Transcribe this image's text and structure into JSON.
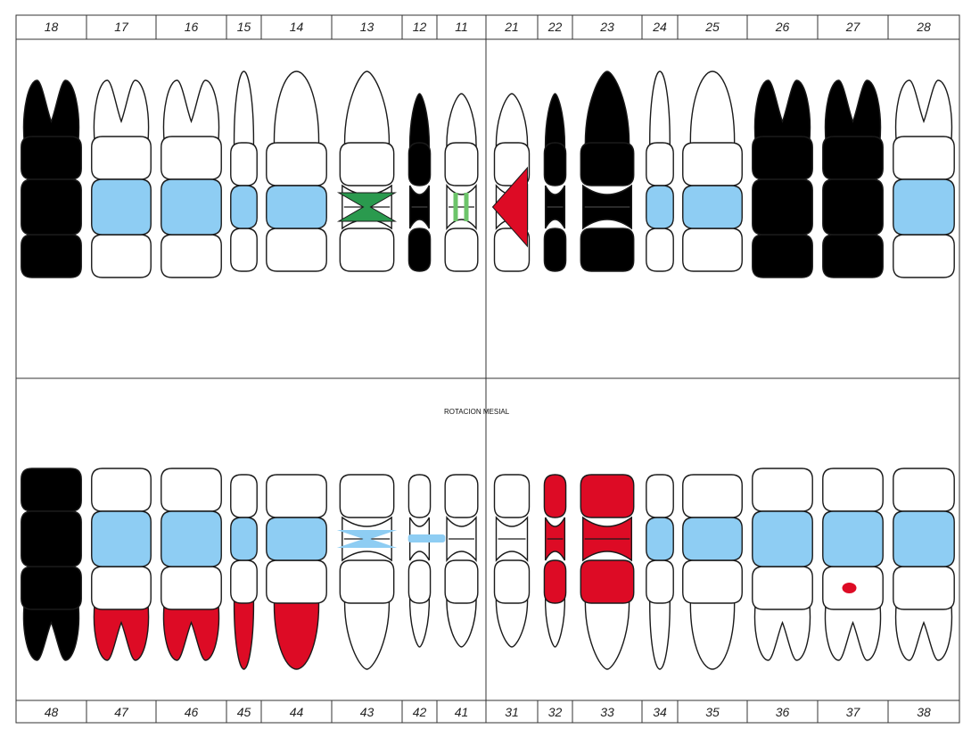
{
  "colors": {
    "extracted": "#000000",
    "restoration": "#8ecdf3",
    "caries": "#dd0b25",
    "sealant": "#2a9a4e",
    "sealant_light": "#6cc46a",
    "outline": "#1a1a1a",
    "fill": "#ffffff"
  },
  "annotation": "ROTACION MESIAL",
  "upper": [
    {
      "number": "18",
      "type": "molar",
      "status": "extracted",
      "mark": "none"
    },
    {
      "number": "17",
      "type": "molar",
      "status": "normal",
      "mark": "restoration"
    },
    {
      "number": "16",
      "type": "molar",
      "status": "normal",
      "mark": "restoration"
    },
    {
      "number": "15",
      "type": "premolar",
      "status": "normal",
      "mark": "restoration"
    },
    {
      "number": "14",
      "type": "premolar",
      "status": "normal",
      "mark": "restoration"
    },
    {
      "number": "13",
      "type": "canine",
      "status": "normal",
      "mark": "sealant-hourglass"
    },
    {
      "number": "12",
      "type": "incisor",
      "status": "extracted",
      "mark": "none"
    },
    {
      "number": "11",
      "type": "incisor",
      "status": "normal",
      "mark": "green-bars"
    },
    {
      "number": "21",
      "type": "incisor",
      "status": "normal",
      "mark": "red-wedge"
    },
    {
      "number": "22",
      "type": "incisor",
      "status": "extracted",
      "mark": "none"
    },
    {
      "number": "23",
      "type": "canine",
      "status": "extracted",
      "mark": "none"
    },
    {
      "number": "24",
      "type": "premolar",
      "status": "normal",
      "mark": "restoration"
    },
    {
      "number": "25",
      "type": "premolar",
      "status": "normal",
      "mark": "restoration"
    },
    {
      "number": "26",
      "type": "molar",
      "status": "extracted",
      "mark": "none"
    },
    {
      "number": "27",
      "type": "molar",
      "status": "extracted",
      "mark": "none"
    },
    {
      "number": "28",
      "type": "molar",
      "status": "normal",
      "mark": "restoration"
    }
  ],
  "lower": [
    {
      "number": "48",
      "type": "molar",
      "status": "extracted",
      "mark": "none"
    },
    {
      "number": "47",
      "type": "molar",
      "status": "root-red",
      "mark": "restoration"
    },
    {
      "number": "46",
      "type": "molar",
      "status": "root-red",
      "mark": "restoration"
    },
    {
      "number": "45",
      "type": "premolar",
      "status": "root-red",
      "mark": "restoration"
    },
    {
      "number": "44",
      "type": "premolar",
      "status": "root-red",
      "mark": "restoration"
    },
    {
      "number": "43",
      "type": "canine",
      "status": "normal",
      "mark": "blue-hourglass"
    },
    {
      "number": "42",
      "type": "incisor",
      "status": "normal",
      "mark": "blue-bar"
    },
    {
      "number": "41",
      "type": "incisor",
      "status": "normal",
      "mark": "none"
    },
    {
      "number": "31",
      "type": "incisor",
      "status": "normal",
      "mark": "none"
    },
    {
      "number": "32",
      "type": "incisor",
      "status": "normal",
      "mark": "crown-red"
    },
    {
      "number": "33",
      "type": "canine",
      "status": "normal",
      "mark": "crown-red"
    },
    {
      "number": "34",
      "type": "premolar",
      "status": "normal",
      "mark": "restoration"
    },
    {
      "number": "35",
      "type": "premolar",
      "status": "normal",
      "mark": "restoration"
    },
    {
      "number": "36",
      "type": "molar",
      "status": "normal",
      "mark": "restoration"
    },
    {
      "number": "37",
      "type": "molar",
      "status": "normal",
      "mark": "restoration-red-dot"
    },
    {
      "number": "38",
      "type": "molar",
      "status": "normal",
      "mark": "restoration"
    }
  ]
}
